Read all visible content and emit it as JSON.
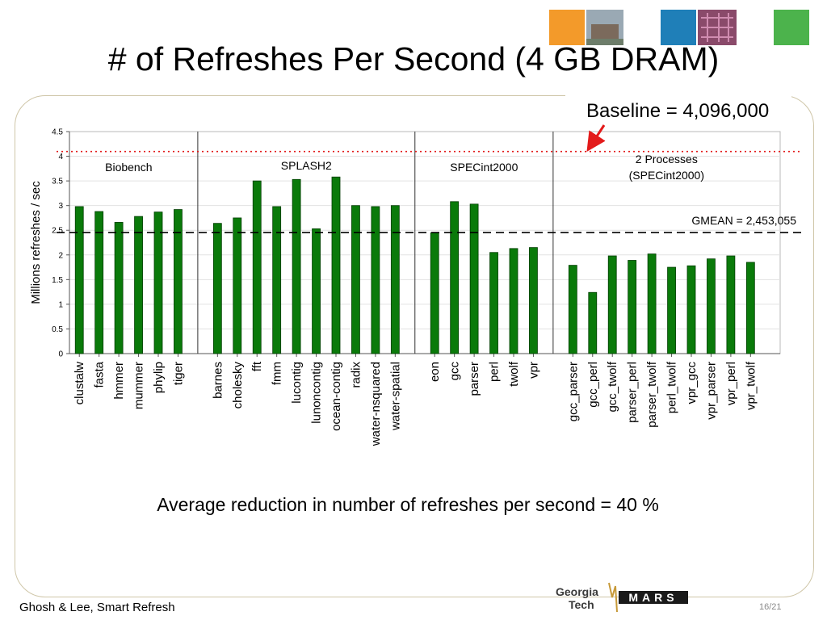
{
  "slide": {
    "title": "# of Refreshes Per Second (4 GB DRAM)",
    "baseline_note": "Baseline = 4,096,000",
    "bottom_note": "Average reduction in number of refreshes per second = 40 %",
    "footer_left": "Ghosh & Lee, Smart Refresh",
    "page_number": "16/21",
    "logo_text_1": "Georgia",
    "logo_text_2": "Tech",
    "logo_mark": "MARS"
  },
  "chart_data": {
    "type": "bar",
    "ylabel": "Millions refreshes / sec",
    "ylim": [
      0,
      4.5
    ],
    "yticks": [
      "0",
      "0.5",
      "1",
      "1.5",
      "2",
      "2.5",
      "3",
      "3.5",
      "4",
      "4.5"
    ],
    "bar_color": "#0a7a0a",
    "categories": [
      "clustalw",
      "fasta",
      "hmmer",
      "mummer",
      "phylip",
      "tiger",
      "barnes",
      "cholesky",
      "fft",
      "fmm",
      "lucontig",
      "lunoncontig",
      "ocean-contig",
      "radix",
      "water-nsquared",
      "water-spatial",
      "eon",
      "gcc",
      "parser",
      "perl",
      "twolf",
      "vpr",
      "gcc_parser",
      "gcc_perl",
      "gcc_twolf",
      "parser_perl",
      "parser_twolf",
      "perl_twolf",
      "vpr_gcc",
      "vpr_parser",
      "vpr_perl",
      "vpr_twolf"
    ],
    "values": [
      2.98,
      2.88,
      2.66,
      2.78,
      2.87,
      2.92,
      2.64,
      2.75,
      3.5,
      2.98,
      3.53,
      2.53,
      3.58,
      3.0,
      2.98,
      3.0,
      2.45,
      3.08,
      3.03,
      2.05,
      2.13,
      2.15,
      1.79,
      1.24,
      1.98,
      1.89,
      2.02,
      1.75,
      1.78,
      1.92,
      1.98,
      1.85
    ],
    "groups": [
      {
        "label": "Biobench",
        "start": 0,
        "end": 5
      },
      {
        "label": "SPLASH2",
        "start": 6,
        "end": 15
      },
      {
        "label": "SPECint2000",
        "start": 16,
        "end": 21
      },
      {
        "label_line1": "2 Processes",
        "label_line2": "(SPECint2000)",
        "start": 22,
        "end": 31
      }
    ],
    "reference_lines": [
      {
        "name": "baseline",
        "value": 4.096,
        "color": "#e31a1a",
        "style": "dotted"
      },
      {
        "name": "gmean",
        "value": 2.453,
        "color": "#000000",
        "style": "dashed",
        "label": "GMEAN = 2,453,055"
      }
    ],
    "grid": true
  }
}
